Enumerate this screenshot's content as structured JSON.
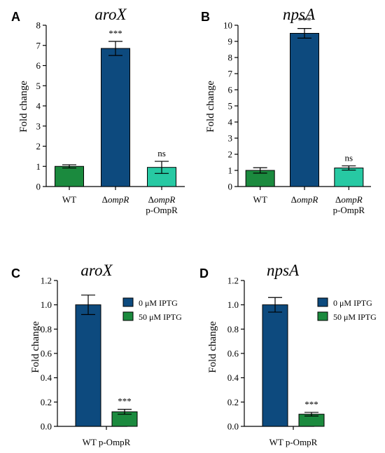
{
  "chart_data": [
    {
      "type": "bar",
      "panel_label": "A",
      "title": "aroX",
      "ylabel": "Fold change",
      "ylim": [
        0,
        8
      ],
      "yticks": [
        "0",
        "1",
        "2",
        "3",
        "4",
        "5",
        "6",
        "7",
        "8"
      ],
      "categories": [
        {
          "lines": [
            [
              {
                "t": "WT"
              }
            ]
          ]
        },
        {
          "lines": [
            [
              {
                "t": "Δ"
              },
              {
                "t": "ompR",
                "i": true
              }
            ]
          ]
        },
        {
          "lines": [
            [
              {
                "t": "Δ"
              },
              {
                "t": "ompR",
                "i": true
              }
            ],
            [
              {
                "t": "p-OmpR"
              }
            ]
          ]
        }
      ],
      "values": [
        1.0,
        6.85,
        0.95
      ],
      "errors": [
        0.08,
        0.35,
        0.3
      ],
      "colors": [
        "#1b8a3e",
        "#0d4a7e",
        "#27c9a3"
      ],
      "annotations": [
        "",
        "***",
        "ns"
      ]
    },
    {
      "type": "bar",
      "panel_label": "B",
      "title": "npsA",
      "ylabel": "Fold change",
      "ylim": [
        0,
        10
      ],
      "yticks": [
        "0",
        "1",
        "2",
        "3",
        "4",
        "5",
        "6",
        "7",
        "8",
        "9",
        "10"
      ],
      "categories": [
        {
          "lines": [
            [
              {
                "t": "WT"
              }
            ]
          ]
        },
        {
          "lines": [
            [
              {
                "t": "Δ"
              },
              {
                "t": "ompR",
                "i": true
              }
            ]
          ]
        },
        {
          "lines": [
            [
              {
                "t": "Δ"
              },
              {
                "t": "ompR",
                "i": true
              }
            ],
            [
              {
                "t": "p-OmpR"
              }
            ]
          ]
        }
      ],
      "values": [
        1.0,
        9.5,
        1.15
      ],
      "errors": [
        0.17,
        0.3,
        0.13
      ],
      "colors": [
        "#1b8a3e",
        "#0d4a7e",
        "#27c9a3"
      ],
      "annotations": [
        "",
        "***",
        "ns"
      ]
    },
    {
      "type": "bar",
      "panel_label": "C",
      "title": "aroX",
      "ylabel": "Fold change",
      "ylim": [
        0,
        1.2
      ],
      "yticks": [
        "0.0",
        "0.2",
        "0.4",
        "0.6",
        "0.8",
        "1.0",
        "1.2"
      ],
      "group_label": "WT p-OmpR",
      "series": [
        {
          "name": "0 μM IPTG",
          "value": 1.0,
          "error": 0.08,
          "color": "#0d4a7e",
          "annotation": ""
        },
        {
          "name": "50 μM IPTG",
          "value": 0.12,
          "error": 0.02,
          "color": "#1b8a3e",
          "annotation": "***"
        }
      ],
      "legend": "right"
    },
    {
      "type": "bar",
      "panel_label": "D",
      "title": "npsA",
      "ylabel": "Fold change",
      "ylim": [
        0,
        1.2
      ],
      "yticks": [
        "0.0",
        "0.2",
        "0.4",
        "0.6",
        "0.8",
        "1.0",
        "1.2"
      ],
      "group_label": "WT p-OmpR",
      "series": [
        {
          "name": "0 μM IPTG",
          "value": 1.0,
          "error": 0.06,
          "color": "#0d4a7e",
          "annotation": ""
        },
        {
          "name": "50 μM IPTG",
          "value": 0.1,
          "error": 0.015,
          "color": "#1b8a3e",
          "annotation": "***"
        }
      ],
      "legend": "right"
    }
  ]
}
